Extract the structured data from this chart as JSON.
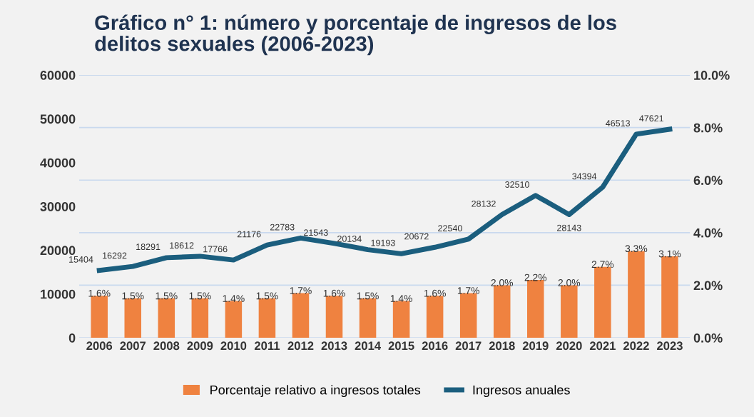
{
  "chart_data": {
    "type": "bar",
    "title": "Gráfico n° 1: número y porcentaje de ingresos de los\ndelitos sexuales (2006-2023)",
    "categories": [
      "2006",
      "2007",
      "2008",
      "2009",
      "2010",
      "2011",
      "2012",
      "2013",
      "2014",
      "2015",
      "2016",
      "2017",
      "2018",
      "2019",
      "2020",
      "2021",
      "2022",
      "2023"
    ],
    "series": [
      {
        "name": "Porcentaje relativo a ingresos totales",
        "axis": "y2",
        "color": "#ef8240",
        "values": [
          1.6,
          1.5,
          1.5,
          1.5,
          1.4,
          1.5,
          1.7,
          1.6,
          1.5,
          1.4,
          1.6,
          1.7,
          2.0,
          2.2,
          2.0,
          2.7,
          3.3,
          3.1
        ],
        "value_labels": [
          "1.6%",
          "1.5%",
          "1.5%",
          "1.5%",
          "1.4%",
          "1.5%",
          "1.7%",
          "1.6%",
          "1.5%",
          "1.4%",
          "1.6%",
          "1.7%",
          "2.0%",
          "2.2%",
          "2.0%",
          "2.7%",
          "3.3%",
          "3.1%"
        ]
      },
      {
        "name": "Ingresos anuales",
        "type": "line",
        "axis": "y",
        "color": "#1b5e7e",
        "values": [
          15404,
          16292,
          18291,
          18612,
          17766,
          21176,
          22783,
          21543,
          20134,
          19193,
          20672,
          22540,
          28132,
          32510,
          28143,
          34394,
          46513,
          47621
        ],
        "value_labels": [
          "15404",
          "16292",
          "18291",
          "18612",
          "17766",
          "21176",
          "22783",
          "21543",
          "20134",
          "19193",
          "20672",
          "22540",
          "28132",
          "32510",
          "28143",
          "34394",
          "46513",
          "47621"
        ]
      }
    ],
    "ylim": [
      0,
      60000
    ],
    "yticks": [
      0,
      10000,
      20000,
      30000,
      40000,
      50000,
      60000
    ],
    "y2lim": [
      0,
      10
    ],
    "y2ticks": [
      {
        "value": 0,
        "label": "0.0%"
      },
      {
        "value": 2,
        "label": "2.0%"
      },
      {
        "value": 4,
        "label": "4.0%"
      },
      {
        "value": 6,
        "label": "6.0%"
      },
      {
        "value": 8,
        "label": "8.0%"
      },
      {
        "value": 10,
        "label": "10.0%"
      }
    ],
    "grid": "y",
    "legend": "bottom",
    "marker": "none",
    "line_style": "solid"
  }
}
